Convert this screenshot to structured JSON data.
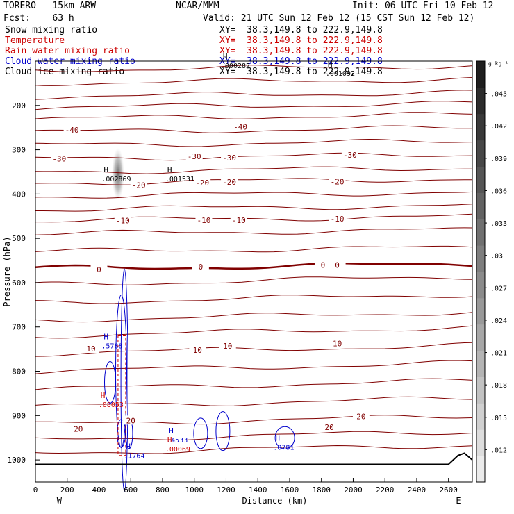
{
  "header": {
    "model": "TORERO   15km ARW",
    "org": "NCAR/MMM",
    "init": "Init: 06 UTC Fri 10 Feb 12",
    "fcst": "Fcst:    63 h",
    "valid": "Valid: 21 UTC Sun 12 Feb 12 (15 CST Sun 12 Feb 12)"
  },
  "fields": [
    {
      "name": "Snow mixing ratio",
      "xy": "XY=  38.3,149.8 to 222.9,149.8",
      "color": "#000000"
    },
    {
      "name": "Temperature",
      "xy": "XY=  38.3,149.8 to 222.9,149.8",
      "color": "#cc0000"
    },
    {
      "name": "Rain water mixing ratio",
      "xy": "XY=  38.3,149.8 to 222.9,149.8",
      "color": "#cc0000"
    },
    {
      "name": "Cloud water mixing ratio",
      "xy": "XY=  38.3,149.8 to 222.9,149.8",
      "color": "#0000cc"
    },
    {
      "name": "Cloud ice mixing ratio",
      "xy": "XY=  38.3,149.8 to 222.9,149.8",
      "color": "#000000"
    }
  ],
  "chart_data": {
    "type": "cross-section",
    "xlabel": "Distance (km)",
    "ylabel": "Pressure (hPa)",
    "xlim": [
      0,
      2750
    ],
    "ylim": [
      100,
      1050
    ],
    "x_ticks": [
      0,
      200,
      400,
      600,
      800,
      1000,
      1200,
      1400,
      1600,
      1800,
      2000,
      2200,
      2400,
      2600
    ],
    "y_ticks": [
      200,
      300,
      400,
      500,
      600,
      700,
      800,
      900,
      1000
    ],
    "left_label": "W",
    "right_label": "E",
    "colorbar": {
      "unit": "g kg⁻¹",
      "ticks": [
        ".045",
        ".042",
        ".039",
        ".036",
        ".033",
        ".03",
        ".027",
        ".024",
        ".021",
        ".018",
        ".015",
        ".012"
      ],
      "tick_values": [
        0.045,
        0.042,
        0.039,
        0.036,
        0.033,
        0.03,
        0.027,
        0.024,
        0.021,
        0.018,
        0.015,
        0.012
      ],
      "vmin": 0.009,
      "vmax": 0.048
    },
    "isotherm_labels": [
      {
        "text": "-40",
        "x": 230,
        "p": 255
      },
      {
        "text": "-40",
        "x": 1290,
        "p": 248
      },
      {
        "text": "-30",
        "x": 150,
        "p": 320
      },
      {
        "text": "-30",
        "x": 1000,
        "p": 315
      },
      {
        "text": "-30",
        "x": 1220,
        "p": 318
      },
      {
        "text": "-30",
        "x": 1980,
        "p": 312
      },
      {
        "text": "-20",
        "x": 650,
        "p": 380
      },
      {
        "text": "-20",
        "x": 1050,
        "p": 374
      },
      {
        "text": "-20",
        "x": 1220,
        "p": 373
      },
      {
        "text": "-20",
        "x": 1900,
        "p": 372
      },
      {
        "text": "-10",
        "x": 550,
        "p": 460
      },
      {
        "text": "-10",
        "x": 1060,
        "p": 459
      },
      {
        "text": "-10",
        "x": 1280,
        "p": 459
      },
      {
        "text": "-10",
        "x": 1900,
        "p": 456
      },
      {
        "text": "0",
        "x": 400,
        "p": 570
      },
      {
        "text": "0",
        "x": 1040,
        "p": 564
      },
      {
        "text": "0",
        "x": 1810,
        "p": 560
      },
      {
        "text": "0",
        "x": 1900,
        "p": 560
      },
      {
        "text": "10",
        "x": 350,
        "p": 749
      },
      {
        "text": "10",
        "x": 1020,
        "p": 752
      },
      {
        "text": "10",
        "x": 1210,
        "p": 743
      },
      {
        "text": "10",
        "x": 1900,
        "p": 737
      },
      {
        "text": "20",
        "x": 270,
        "p": 930
      },
      {
        "text": "20",
        "x": 600,
        "p": 911
      },
      {
        "text": "20",
        "x": 1850,
        "p": 926
      },
      {
        "text": "20",
        "x": 2050,
        "p": 902
      }
    ],
    "maxima": [
      {
        "mark": "H",
        "value": ".002869",
        "x": 430,
        "p": 360,
        "color": "#000000"
      },
      {
        "mark": "H",
        "value": ".001531",
        "x": 830,
        "p": 360,
        "color": "#000000"
      },
      {
        "mark": "H",
        "value": ".000282",
        "x": 1180,
        "p": 105,
        "color": "#000000"
      },
      {
        "mark": "H",
        "value": ".001092",
        "x": 1840,
        "p": 122,
        "color": "#000000"
      },
      {
        "mark": "H",
        "value": ".5788",
        "x": 430,
        "p": 737,
        "color": "#0000cc"
      },
      {
        "mark": "H",
        "value": ".08053",
        "x": 410,
        "p": 870,
        "color": "#cc0000"
      },
      {
        "mark": "H",
        "value": ".4533",
        "x": 840,
        "p": 950,
        "color": "#0000cc"
      },
      {
        "mark": "H",
        "value": ".00069",
        "x": 830,
        "p": 970,
        "color": "#cc0000"
      },
      {
        "mark": "H",
        "value": ".1764",
        "x": 570,
        "p": 985,
        "color": "#0000cc"
      },
      {
        "mark": "H",
        "value": ".0781",
        "x": 1510,
        "p": 966,
        "color": "#0000cc"
      }
    ]
  }
}
